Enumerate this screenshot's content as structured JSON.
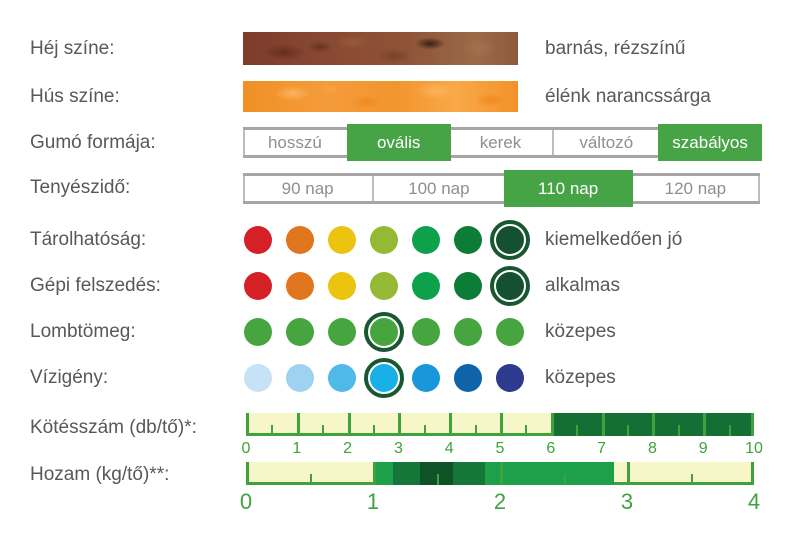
{
  "rows": {
    "skin": {
      "label": "Héj színe:",
      "value": "barnás, rézszínű",
      "swatch_base_color": "#8a4a32"
    },
    "flesh": {
      "label": "Hús színe:",
      "value": "élénk narancssárga",
      "swatch_base_color": "#f39128"
    },
    "shape": {
      "label": "Gumó formája:",
      "options": [
        {
          "label": "hosszú",
          "selected": false
        },
        {
          "label": "ovális",
          "selected": true
        },
        {
          "label": "kerek",
          "selected": false
        },
        {
          "label": "változó",
          "selected": false
        },
        {
          "label": "szabályos",
          "selected": true
        }
      ]
    },
    "growing": {
      "label": "Tenyészidő:",
      "options": [
        {
          "label": "90 nap",
          "selected": false
        },
        {
          "label": "100 nap",
          "selected": false
        },
        {
          "label": "110 nap",
          "selected": true
        },
        {
          "label": "120 nap",
          "selected": false
        }
      ]
    },
    "storability": {
      "label": "Tárolhatóság:",
      "value": "kiemelkedően jó",
      "dots": [
        "#d32127",
        "#e2761f",
        "#eac40e",
        "#93b937",
        "#0da14c",
        "#0d7c37",
        "#145130"
      ],
      "selected_index": 6,
      "rating": "7/7"
    },
    "machine_harvest": {
      "label": "Gépi felszedés:",
      "value": "alkalmas",
      "dots": [
        "#d32127",
        "#e2761f",
        "#eac40e",
        "#93b937",
        "#0da14c",
        "#0d7c37",
        "#145130"
      ],
      "selected_index": 6,
      "rating": "7/7"
    },
    "foliage": {
      "label": "Lombtömeg:",
      "value": "közepes",
      "dots": [
        "#46a53e",
        "#46a53e",
        "#46a53e",
        "#46a53e",
        "#46a53e",
        "#46a53e",
        "#46a53e"
      ],
      "selected_index": 3,
      "rating": "4/7"
    },
    "water": {
      "label": "Vízigény:",
      "value": "közepes",
      "dots": [
        "#c5e2f6",
        "#9fd2f1",
        "#4fbae9",
        "#19b0e7",
        "#1898da",
        "#0f64a9",
        "#2e3a8d"
      ],
      "selected_index": 3,
      "rating": "4/7"
    },
    "tuber_count": {
      "label": "Kötésszám (db/tő)*:"
    },
    "yield": {
      "label": "Hozam (kg/tő)**:"
    }
  },
  "palette": {
    "label_text": "#58585a",
    "segment_selected_green": "#46a446",
    "segment_gray_text": "#8f8f8f",
    "bar_line_gray": "#a6a6a6",
    "scale_green": "#3fa23c",
    "scale_track_yellow": "#f6f6c9",
    "ring_dark_green": "#185730"
  },
  "chart_data": [
    {
      "type": "bar",
      "title": "Kötésszám (db/tő)*",
      "axis_range": [
        0,
        10
      ],
      "tick_labels": [
        "0",
        "1",
        "2",
        "3",
        "4",
        "5",
        "6",
        "7",
        "8",
        "9",
        "10"
      ],
      "minor_ticks_at_halves": true,
      "track_color": "#f6f6c9",
      "segments": [
        {
          "from": 6,
          "to": 10,
          "color": "#156f34"
        }
      ]
    },
    {
      "type": "bar",
      "title": "Hozam (kg/tő)**",
      "axis_range": [
        0,
        4
      ],
      "tick_labels": [
        "0",
        "1",
        "2",
        "3",
        "4"
      ],
      "minor_ticks_at_halves": true,
      "track_color": "#f6f6c9",
      "segments": [
        {
          "from": 1.0,
          "to": 1.16,
          "color": "#1ca04a"
        },
        {
          "from": 1.16,
          "to": 1.37,
          "color": "#15763a"
        },
        {
          "from": 1.37,
          "to": 1.63,
          "color": "#0e5226"
        },
        {
          "from": 1.63,
          "to": 1.88,
          "color": "#15763a"
        },
        {
          "from": 1.88,
          "to": 2.9,
          "color": "#1ca04a"
        }
      ]
    }
  ]
}
